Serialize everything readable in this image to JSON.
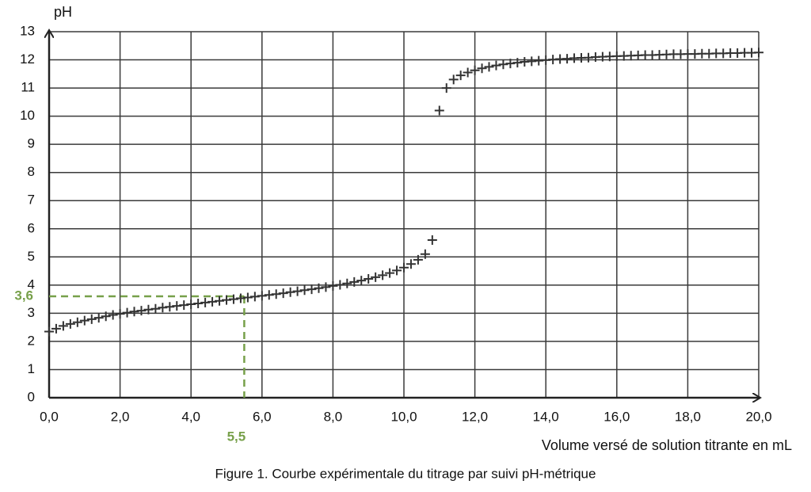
{
  "chart_data": {
    "type": "scatter",
    "marker": "plus",
    "title": "Figure 1. Courbe expérimentale du titrage par suivi pH-métrique",
    "x_label": "Volume versé de solution titrante en mL",
    "y_label": "pH",
    "xlim": [
      0,
      20
    ],
    "ylim": [
      0,
      13
    ],
    "xticks": [
      {
        "value": 0,
        "label": "0,0"
      },
      {
        "value": 2,
        "label": "2,0"
      },
      {
        "value": 4,
        "label": "4,0"
      },
      {
        "value": 6,
        "label": "6,0"
      },
      {
        "value": 8,
        "label": "8,0"
      },
      {
        "value": 10,
        "label": "10,0"
      },
      {
        "value": 12,
        "label": "12,0"
      },
      {
        "value": 14,
        "label": "14,0"
      },
      {
        "value": 16,
        "label": "16,0"
      },
      {
        "value": 18,
        "label": "18,0"
      },
      {
        "value": 20,
        "label": "20,0"
      }
    ],
    "yticks": [
      0,
      1,
      2,
      3,
      4,
      5,
      6,
      7,
      8,
      9,
      10,
      11,
      12,
      13
    ],
    "grid": true,
    "series": [
      {
        "color": "#333333",
        "x": [
          0,
          0.2,
          0.4,
          0.6,
          0.8,
          1.0,
          1.2,
          1.4,
          1.6,
          1.8,
          2.0,
          2.2,
          2.4,
          2.6,
          2.8,
          3.0,
          3.2,
          3.4,
          3.6,
          3.8,
          4.0,
          4.2,
          4.4,
          4.6,
          4.8,
          5.0,
          5.2,
          5.4,
          5.6,
          5.8,
          6.0,
          6.2,
          6.4,
          6.6,
          6.8,
          7.0,
          7.2,
          7.4,
          7.6,
          7.8,
          8.0,
          8.2,
          8.4,
          8.6,
          8.8,
          9.0,
          9.2,
          9.4,
          9.6,
          9.8,
          10.0,
          10.2,
          10.4,
          10.6,
          10.8,
          11.0,
          11.2,
          11.4,
          11.6,
          11.8,
          12.0,
          12.2,
          12.4,
          12.6,
          12.8,
          13.0,
          13.2,
          13.4,
          13.6,
          13.8,
          14.0,
          14.2,
          14.4,
          14.6,
          14.8,
          15.0,
          15.2,
          15.4,
          15.6,
          15.8,
          16.0,
          16.2,
          16.4,
          16.6,
          16.8,
          17.0,
          17.2,
          17.4,
          17.6,
          17.8,
          18.0,
          18.2,
          18.4,
          18.6,
          18.8,
          19.0,
          19.2,
          19.4,
          19.6,
          19.8,
          20.0
        ],
        "values": [
          2.35,
          2.45,
          2.55,
          2.62,
          2.68,
          2.74,
          2.79,
          2.84,
          2.89,
          2.94,
          2.98,
          3.02,
          3.06,
          3.09,
          3.13,
          3.16,
          3.2,
          3.23,
          3.26,
          3.29,
          3.32,
          3.35,
          3.38,
          3.41,
          3.44,
          3.47,
          3.5,
          3.53,
          3.56,
          3.59,
          3.62,
          3.65,
          3.68,
          3.71,
          3.75,
          3.78,
          3.82,
          3.85,
          3.89,
          3.93,
          3.97,
          4.01,
          4.06,
          4.11,
          4.16,
          4.22,
          4.28,
          4.35,
          4.43,
          4.52,
          4.62,
          4.75,
          4.9,
          5.1,
          5.6,
          10.2,
          11.0,
          11.3,
          11.45,
          11.55,
          11.63,
          11.7,
          11.75,
          11.8,
          11.84,
          11.87,
          11.9,
          11.93,
          11.95,
          11.97,
          11.99,
          12.01,
          12.03,
          12.04,
          12.06,
          12.07,
          12.08,
          12.1,
          12.11,
          12.12,
          12.13,
          12.14,
          12.15,
          12.16,
          12.17,
          12.17,
          12.18,
          12.19,
          12.2,
          12.2,
          12.21,
          12.21,
          12.22,
          12.22,
          12.23,
          12.23,
          12.24,
          12.24,
          12.25,
          12.25,
          12.26
        ]
      }
    ],
    "guide": {
      "x": 5.5,
      "x_label": "5,5",
      "y": 3.6,
      "y_label": "3,6",
      "color": "#77a04a"
    }
  }
}
